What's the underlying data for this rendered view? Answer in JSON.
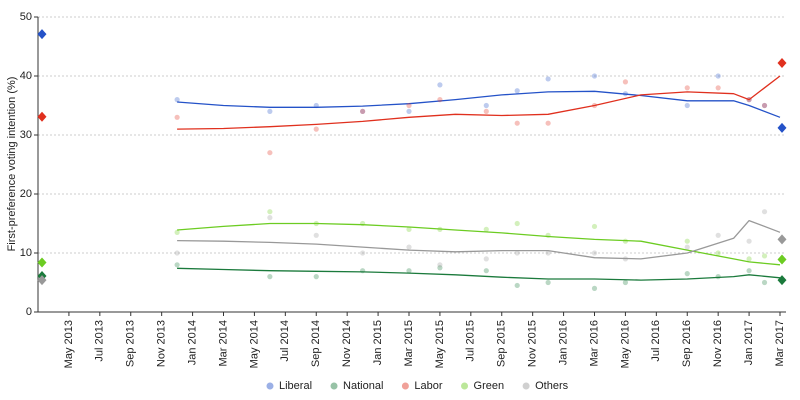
{
  "chart_data": {
    "type": "line",
    "y_label": "First-preference voting intention (%)",
    "ylim": [
      0,
      50
    ],
    "yticks": [
      0,
      10,
      20,
      30,
      40,
      50
    ],
    "grid": true,
    "xlim": [
      "2013-03",
      "2017-03"
    ],
    "xticks": [
      {
        "value": "2013-05",
        "label": "May 2013"
      },
      {
        "value": "2013-07",
        "label": "Jul 2013"
      },
      {
        "value": "2013-09",
        "label": "Sep 2013"
      },
      {
        "value": "2013-11",
        "label": "Nov 2013"
      },
      {
        "value": "2014-01",
        "label": "Jan 2014"
      },
      {
        "value": "2014-03",
        "label": "Mar 2014"
      },
      {
        "value": "2014-05",
        "label": "May 2014"
      },
      {
        "value": "2014-07",
        "label": "Jul 2014"
      },
      {
        "value": "2014-09",
        "label": "Sep 2014"
      },
      {
        "value": "2014-11",
        "label": "Nov 2014"
      },
      {
        "value": "2015-01",
        "label": "Jan 2015"
      },
      {
        "value": "2015-03",
        "label": "Mar 2015"
      },
      {
        "value": "2015-05",
        "label": "May 2015"
      },
      {
        "value": "2015-07",
        "label": "Jul 2015"
      },
      {
        "value": "2015-09",
        "label": "Sep 2015"
      },
      {
        "value": "2015-11",
        "label": "Nov 2015"
      },
      {
        "value": "2016-01",
        "label": "Jan 2016"
      },
      {
        "value": "2016-03",
        "label": "Mar 2016"
      },
      {
        "value": "2016-05",
        "label": "May 2016"
      },
      {
        "value": "2016-07",
        "label": "Jul 2016"
      },
      {
        "value": "2016-09",
        "label": "Sep 2016"
      },
      {
        "value": "2016-11",
        "label": "Nov 2016"
      },
      {
        "value": "2017-01",
        "label": "Jan 2017"
      },
      {
        "value": "2017-03",
        "label": "Mar 2017"
      }
    ],
    "x": [
      "2013-12",
      "2014-03",
      "2014-06",
      "2014-09",
      "2014-12",
      "2015-03",
      "2015-06",
      "2015-09",
      "2015-12",
      "2016-03",
      "2016-06",
      "2016-09",
      "2016-12",
      "2017-01",
      "2017-03"
    ],
    "poll_x": [
      "2013-12",
      "2014-06",
      "2014-09",
      "2014-12",
      "2015-03",
      "2015-05",
      "2015-08",
      "2015-10",
      "2015-12",
      "2016-03",
      "2016-05",
      "2016-09",
      "2016-11",
      "2017-01",
      "2017-02"
    ],
    "result_x": [
      "2013-03",
      "2017-03"
    ],
    "series": [
      {
        "name": "Liberal",
        "color": "#2452c8",
        "values": [
          35.6,
          35.0,
          34.7,
          34.7,
          34.9,
          35.3,
          36.0,
          36.8,
          37.3,
          37.4,
          36.7,
          35.8,
          35.8,
          35.0,
          33.0
        ],
        "polls": [
          36,
          34,
          35,
          34,
          34,
          38.5,
          35,
          37.5,
          39.5,
          40,
          37,
          35,
          40,
          36,
          35
        ],
        "results": [
          47.1,
          31.2
        ]
      },
      {
        "name": "National",
        "color": "#1b7a3c",
        "values": [
          7.4,
          7.2,
          7.0,
          6.9,
          6.8,
          6.6,
          6.3,
          5.9,
          5.6,
          5.6,
          5.4,
          5.6,
          6.0,
          6.3,
          5.8
        ],
        "polls": [
          8,
          6,
          6,
          7,
          7,
          7.5,
          7,
          4.5,
          5,
          4,
          5,
          6.5,
          6,
          7,
          5
        ],
        "results": [
          6.1,
          5.4
        ]
      },
      {
        "name": "Labor",
        "color": "#e0301e",
        "values": [
          31.0,
          31.1,
          31.4,
          31.8,
          32.3,
          33.0,
          33.5,
          33.3,
          33.5,
          35.0,
          36.8,
          37.3,
          37.0,
          36.0,
          40.0
        ],
        "polls": [
          33,
          27,
          31,
          34,
          35,
          36,
          34,
          32,
          32,
          35,
          39,
          38,
          38,
          36,
          35
        ],
        "results": [
          33.1,
          42.2
        ]
      },
      {
        "name": "Green",
        "color": "#6ccc22",
        "values": [
          13.9,
          14.5,
          15.0,
          15.0,
          14.8,
          14.4,
          13.9,
          13.4,
          12.8,
          12.3,
          12.0,
          10.5,
          9.0,
          8.5,
          8.0
        ],
        "polls": [
          13.5,
          17,
          15,
          15,
          14,
          14,
          14,
          15,
          13,
          14.5,
          12,
          12,
          10,
          9,
          9.5
        ],
        "results": [
          8.4,
          8.9
        ]
      },
      {
        "name": "Others",
        "color": "#999999",
        "values": [
          12.1,
          12.0,
          11.8,
          11.5,
          11.0,
          10.5,
          10.2,
          10.4,
          10.4,
          9.2,
          9.0,
          10.0,
          12.5,
          15.5,
          13.5
        ],
        "polls": [
          10,
          16,
          13,
          10,
          11,
          8,
          9,
          10,
          10,
          10,
          9,
          11,
          13,
          12,
          17
        ],
        "results": [
          5.4,
          12.3
        ]
      }
    ]
  }
}
